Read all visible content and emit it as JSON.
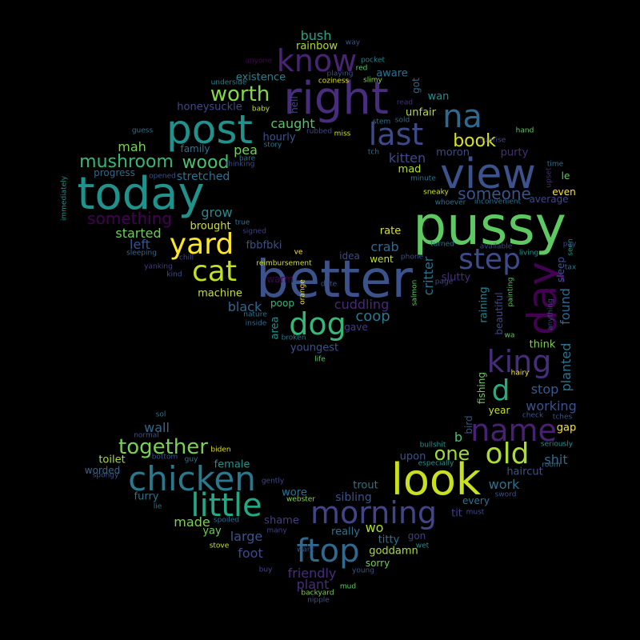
{
  "words": [
    {
      "text": "pussy",
      "color": "#5ec962"
    },
    {
      "text": "better",
      "color": "#3b528b"
    },
    {
      "text": "today",
      "color": "#21918c"
    },
    {
      "text": "right",
      "color": "#472d7b"
    },
    {
      "text": "view",
      "color": "#3b528b"
    },
    {
      "text": "post",
      "color": "#21918c"
    },
    {
      "text": "look",
      "color": "#c8e020"
    },
    {
      "text": "day",
      "color": "#440154"
    },
    {
      "text": "chicken",
      "color": "#2a788e"
    },
    {
      "text": "little",
      "color": "#22a884"
    },
    {
      "text": "ftop",
      "color": "#31688e"
    },
    {
      "text": "morning",
      "color": "#414487"
    },
    {
      "text": "name",
      "color": "#482173"
    },
    {
      "text": "know",
      "color": "#482475"
    },
    {
      "text": "yard",
      "color": "#fde725"
    },
    {
      "text": "cat",
      "color": "#c2df23"
    },
    {
      "text": "king",
      "color": "#472c7a"
    },
    {
      "text": "dog",
      "color": "#35b779"
    },
    {
      "text": "step",
      "color": "#3e4a89"
    },
    {
      "text": "last",
      "color": "#3e4989"
    },
    {
      "text": "na",
      "color": "#31688e"
    },
    {
      "text": "old",
      "color": "#addc30"
    },
    {
      "text": "d",
      "color": "#25ab82"
    },
    {
      "text": "worth",
      "color": "#86d549"
    },
    {
      "text": "together",
      "color": "#7ad151"
    },
    {
      "text": "one",
      "color": "#a0da39"
    },
    {
      "text": "mushroom",
      "color": "#35b779"
    },
    {
      "text": "wood",
      "color": "#4ac16d"
    },
    {
      "text": "book",
      "color": "#d8e219"
    },
    {
      "text": "something",
      "color": "#440154"
    },
    {
      "text": "someone",
      "color": "#3b528b"
    },
    {
      "text": "caught",
      "color": "#52c569"
    },
    {
      "text": "pea",
      "color": "#75d054"
    },
    {
      "text": "kitten",
      "color": "#3e4989"
    },
    {
      "text": "grow",
      "color": "#238a8d"
    },
    {
      "text": "started",
      "color": "#6ccd5a"
    },
    {
      "text": "left",
      "color": "#3b528b"
    },
    {
      "text": "brought",
      "color": "#d0e11c"
    },
    {
      "text": "machine",
      "color": "#cae11f"
    },
    {
      "text": "black",
      "color": "#31688e"
    },
    {
      "text": "poop",
      "color": "#35b779"
    },
    {
      "text": "cuddling",
      "color": "#482878"
    },
    {
      "text": "coop",
      "color": "#2a788e"
    },
    {
      "text": "crab",
      "color": "#31688e"
    },
    {
      "text": "rate",
      "color": "#d8e219"
    },
    {
      "text": "went",
      "color": "#bddf26"
    },
    {
      "text": "fbbfbki",
      "color": "#3b528b"
    },
    {
      "text": "hourly",
      "color": "#3b528b"
    },
    {
      "text": "bush",
      "color": "#21a585"
    },
    {
      "text": "rainbow",
      "color": "#addc30"
    },
    {
      "text": "existence",
      "color": "#26828e"
    },
    {
      "text": "aware",
      "color": "#2c728e"
    },
    {
      "text": "honeysuckle",
      "color": "#3e4989"
    },
    {
      "text": "unfair",
      "color": "#b5de2b"
    },
    {
      "text": "wan",
      "color": "#21918c"
    },
    {
      "text": "family",
      "color": "#2c728e"
    },
    {
      "text": "mah",
      "color": "#7ad151"
    },
    {
      "text": "progress",
      "color": "#31688e"
    },
    {
      "text": "stretched",
      "color": "#2c728e"
    },
    {
      "text": "mad",
      "color": "#b5de2b"
    },
    {
      "text": "moron",
      "color": "#3e4989"
    },
    {
      "text": "purty",
      "color": "#472d7b"
    },
    {
      "text": "average",
      "color": "#3e4989"
    },
    {
      "text": "even",
      "color": "#fde725"
    },
    {
      "text": "le",
      "color": "#5ec962"
    },
    {
      "text": "sleep",
      "color": "#3b528b"
    },
    {
      "text": "found",
      "color": "#31688e"
    },
    {
      "text": "think",
      "color": "#7ad151"
    },
    {
      "text": "stop",
      "color": "#38598c"
    },
    {
      "text": "planted",
      "color": "#2c728e"
    },
    {
      "text": "working",
      "color": "#3b528b"
    },
    {
      "text": "gap",
      "color": "#fde725"
    },
    {
      "text": "shit",
      "color": "#31688e"
    },
    {
      "text": "haircut",
      "color": "#3b528b"
    },
    {
      "text": "work",
      "color": "#2c728e"
    },
    {
      "text": "every",
      "color": "#2c728e"
    },
    {
      "text": "tit",
      "color": "#433e85"
    },
    {
      "text": "gon",
      "color": "#433e85"
    },
    {
      "text": "titty",
      "color": "#2c728e"
    },
    {
      "text": "goddamn",
      "color": "#addc30"
    },
    {
      "text": "sorry",
      "color": "#6ccd5a"
    },
    {
      "text": "wo",
      "color": "#ace02b"
    },
    {
      "text": "really",
      "color": "#2c728e"
    },
    {
      "text": "sibling",
      "color": "#3b528b"
    },
    {
      "text": "trout",
      "color": "#2c728e"
    },
    {
      "text": "wore",
      "color": "#2c728e"
    },
    {
      "text": "webster",
      "color": "#86d549"
    },
    {
      "text": "shame",
      "color": "#433e85"
    },
    {
      "text": "large",
      "color": "#3b528b"
    },
    {
      "text": "foot",
      "color": "#3e4989"
    },
    {
      "text": "friendly",
      "color": "#472d7b"
    },
    {
      "text": "plant",
      "color": "#472d7b"
    },
    {
      "text": "yay",
      "color": "#6ccd5a"
    },
    {
      "text": "made",
      "color": "#7ad151"
    },
    {
      "text": "furry",
      "color": "#2c728e"
    },
    {
      "text": "lie",
      "color": "#2c728e"
    },
    {
      "text": "female",
      "color": "#21918c"
    },
    {
      "text": "toilet",
      "color": "#aadc32"
    },
    {
      "text": "worded",
      "color": "#31688e"
    },
    {
      "text": "wall",
      "color": "#31688e"
    },
    {
      "text": "upon",
      "color": "#3b528b"
    },
    {
      "text": "b",
      "color": "#4ac16d"
    },
    {
      "text": "bird",
      "color": "#3b528b"
    },
    {
      "text": "fishing",
      "color": "#6ccd5a"
    },
    {
      "text": "year",
      "color": "#c8e020"
    },
    {
      "text": "raining",
      "color": "#26828e"
    },
    {
      "text": "beautiful",
      "color": "#3e4989"
    },
    {
      "text": "critter",
      "color": "#2c728e"
    },
    {
      "text": "slutty",
      "color": "#472d7b"
    },
    {
      "text": "area",
      "color": "#21918c"
    },
    {
      "text": "gave",
      "color": "#433e85"
    },
    {
      "text": "youngest",
      "color": "#3b528b"
    },
    {
      "text": "idea",
      "color": "#3e4989"
    },
    {
      "text": "got",
      "color": "#31688e"
    },
    {
      "text": "hell",
      "color": "#3e4989"
    },
    {
      "text": "stem",
      "color": "#2c728e"
    },
    {
      "text": "story",
      "color": "#2c728e"
    },
    {
      "text": "rubbed",
      "color": "#3e4989"
    },
    {
      "text": "miss",
      "color": "#c8e020"
    },
    {
      "text": "coziness",
      "color": "#d8e219"
    },
    {
      "text": "playing",
      "color": "#3b528b"
    },
    {
      "text": "red",
      "color": "#5ec962"
    },
    {
      "text": "slimy",
      "color": "#86d549"
    },
    {
      "text": "pocket",
      "color": "#26828e"
    },
    {
      "text": "way",
      "color": "#3b528b"
    },
    {
      "text": "anyone",
      "color": "#440154"
    },
    {
      "text": "underside",
      "color": "#26828e"
    },
    {
      "text": "baby",
      "color": "#c2df23"
    },
    {
      "text": "read",
      "color": "#472d7b"
    },
    {
      "text": "sold",
      "color": "#31688e"
    },
    {
      "text": "sunrise",
      "color": "#3e4989"
    },
    {
      "text": "hand",
      "color": "#5ec962"
    },
    {
      "text": "guess",
      "color": "#2c728e"
    },
    {
      "text": "tch",
      "color": "#2c728e"
    },
    {
      "text": "bare",
      "color": "#2c728e"
    },
    {
      "text": "thinking",
      "color": "#3e4989"
    },
    {
      "text": "opened",
      "color": "#3b528b"
    },
    {
      "text": "minute",
      "color": "#2c728e"
    },
    {
      "text": "time",
      "color": "#2c728e"
    },
    {
      "text": "upset",
      "color": "#472d7b"
    },
    {
      "text": "immediately",
      "color": "#21918c"
    },
    {
      "text": "true",
      "color": "#2c728e"
    },
    {
      "text": "signed",
      "color": "#433e85"
    },
    {
      "text": "sleeping",
      "color": "#31688e"
    },
    {
      "text": "chill",
      "color": "#3e4989"
    },
    {
      "text": "yanking",
      "color": "#433e85"
    },
    {
      "text": "kind",
      "color": "#3b528b"
    },
    {
      "text": "ve",
      "color": "#fde725"
    },
    {
      "text": "reimbursement",
      "color": "#d8e219"
    },
    {
      "text": "date",
      "color": "#3b528b"
    },
    {
      "text": "nature",
      "color": "#2c728e"
    },
    {
      "text": "inside",
      "color": "#31688e"
    },
    {
      "text": "warm",
      "color": "#440154"
    },
    {
      "text": "orange",
      "color": "#fde725"
    },
    {
      "text": "broken",
      "color": "#2c728e"
    },
    {
      "text": "life",
      "color": "#5ec962"
    },
    {
      "text": "phone",
      "color": "#3b528b"
    },
    {
      "text": "salmon",
      "color": "#5ec962"
    },
    {
      "text": "page",
      "color": "#3e4989"
    },
    {
      "text": "turned",
      "color": "#2c728e"
    },
    {
      "text": "available",
      "color": "#3e4989"
    },
    {
      "text": "painting",
      "color": "#5ec962"
    },
    {
      "text": "wa",
      "color": "#5ec962"
    },
    {
      "text": "living",
      "color": "#21918c"
    },
    {
      "text": "seen",
      "color": "#21918c"
    },
    {
      "text": "pay",
      "color": "#3e4989"
    },
    {
      "text": "tax",
      "color": "#2c728e"
    },
    {
      "text": "anything",
      "color": "#3e4989"
    },
    {
      "text": "sneaky",
      "color": "#c8e020"
    },
    {
      "text": "whoever",
      "color": "#2c728e"
    },
    {
      "text": "inconvenient",
      "color": "#2c728e"
    },
    {
      "text": "hairy",
      "color": "#fde725"
    },
    {
      "text": "check",
      "color": "#3b528b"
    },
    {
      "text": "tches",
      "color": "#3b528b"
    },
    {
      "text": "seriously",
      "color": "#21918c"
    },
    {
      "text": "room",
      "color": "#2c728e"
    },
    {
      "text": "sword",
      "color": "#3b528b"
    },
    {
      "text": "must",
      "color": "#3e4989"
    },
    {
      "text": "especially",
      "color": "#21918c"
    },
    {
      "text": "bullshit",
      "color": "#21918c"
    },
    {
      "text": "sol",
      "color": "#2c728e"
    },
    {
      "text": "normal",
      "color": "#3b528b"
    },
    {
      "text": "bottom",
      "color": "#3b528b"
    },
    {
      "text": "guy",
      "color": "#2c728e"
    },
    {
      "text": "biden",
      "color": "#d8e219"
    },
    {
      "text": "spongy",
      "color": "#3b528b"
    },
    {
      "text": "gently",
      "color": "#3e4989"
    },
    {
      "text": "spoiled",
      "color": "#31688e"
    },
    {
      "text": "many",
      "color": "#433e85"
    },
    {
      "text": "stove",
      "color": "#c8e020"
    },
    {
      "text": "want",
      "color": "#3b528b"
    },
    {
      "text": "buy",
      "color": "#3e4989"
    },
    {
      "text": "young",
      "color": "#3b528b"
    },
    {
      "text": "wet",
      "color": "#21918c"
    },
    {
      "text": "mud",
      "color": "#5ec962"
    },
    {
      "text": "backyard",
      "color": "#7ad151"
    },
    {
      "text": "nipple",
      "color": "#3b528b"
    }
  ]
}
